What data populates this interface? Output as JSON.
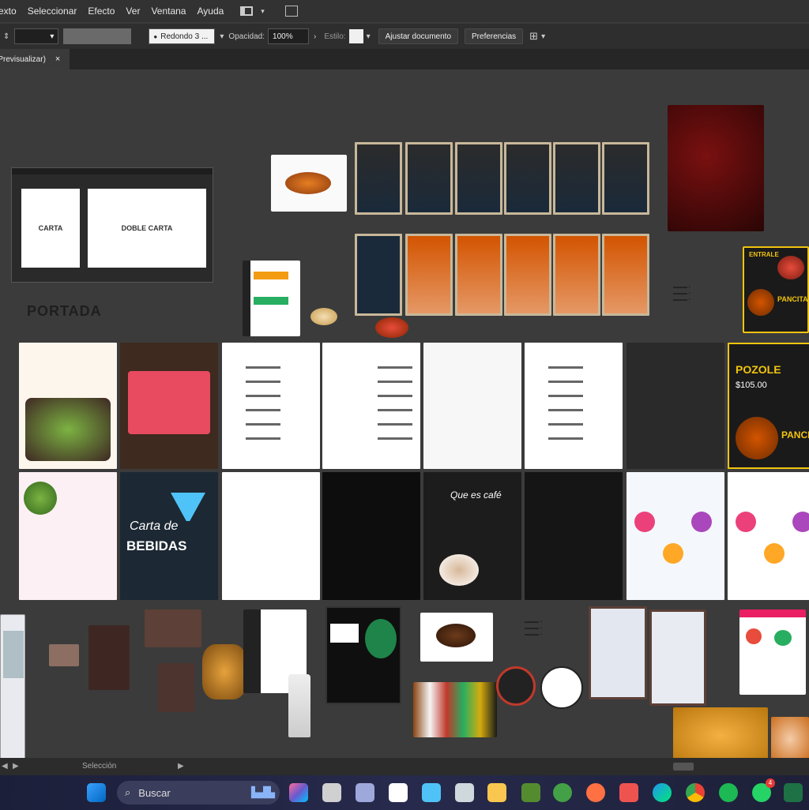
{
  "menubar": {
    "items": [
      "Texto",
      "Seleccionar",
      "Efecto",
      "Ver",
      "Ventana",
      "Ayuda"
    ]
  },
  "control_bar": {
    "brush_label": "Redondo 3 ...",
    "opacity_label": "Opacidad:",
    "opacity_value": "100%",
    "style_label": "Estilo:",
    "fit_button": "Ajustar documento",
    "prefs_button": "Preferencias"
  },
  "tab": {
    "label": "(Previsualizar)",
    "close": "×"
  },
  "canvas": {
    "artboard_labels": [
      "CARTA",
      "DOBLE CARTA"
    ],
    "portada": "PORTADA",
    "bebidas_text": "BEBIDAS",
    "carta_text": "Carta de",
    "cafe_text": "Que es café",
    "pozole_text": "POZOLE",
    "pancita_text": "PANCITA",
    "price_text": "$105.00"
  },
  "statusbar": {
    "label": "Selección"
  },
  "taskbar": {
    "search_placeholder": "Buscar",
    "notification_count": "4"
  },
  "colors": {
    "canvas": "#3b3b3b",
    "menubar": "#323232",
    "accent_red": "#c0392b",
    "taskbar": "#272a4c"
  }
}
